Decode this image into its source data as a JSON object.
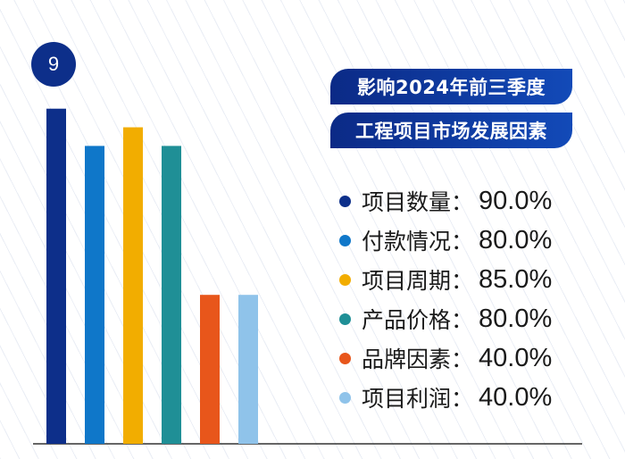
{
  "badge": {
    "number": "9"
  },
  "title": {
    "line1": "影响2024年前三季度",
    "line2": "工程项目市场发展因素"
  },
  "chart_data": {
    "type": "bar",
    "title": "影响2024年前三季度工程项目市场发展因素",
    "categories": [
      "项目数量",
      "付款情况",
      "项目周期",
      "产品价格",
      "品牌因素",
      "项目利润"
    ],
    "values": [
      90.0,
      80.0,
      85.0,
      80.0,
      40.0,
      40.0
    ],
    "value_labels": [
      "90.0%",
      "80.0%",
      "85.0%",
      "80.0%",
      "40.0%",
      "40.0%"
    ],
    "colors": [
      "#0d2f8a",
      "#0f77c9",
      "#f2ad00",
      "#1f8f96",
      "#e8561b",
      "#8fc3ea"
    ],
    "ylim": [
      0,
      100
    ],
    "grid": false,
    "legend_position": "right",
    "colon": "："
  }
}
